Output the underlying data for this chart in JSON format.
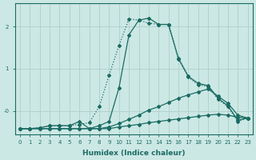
{
  "xlabel": "Humidex (Indice chaleur)",
  "bg_color": "#cce8e4",
  "grid_color": "#aecfcb",
  "line_color": "#1a6b63",
  "xlim": [
    -0.5,
    23.5
  ],
  "ylim": [
    -0.55,
    2.55
  ],
  "xticks": [
    0,
    1,
    2,
    3,
    4,
    5,
    6,
    7,
    8,
    9,
    10,
    11,
    12,
    13,
    14,
    15,
    16,
    17,
    18,
    19,
    20,
    21,
    22,
    23
  ],
  "yticks": [
    0.0,
    1.0,
    2.0
  ],
  "ytick_labels": [
    "-0",
    "1",
    "2"
  ],
  "lines": [
    {
      "x": [
        0,
        1,
        2,
        3,
        4,
        5,
        6,
        7,
        8,
        9,
        10,
        11,
        12,
        13,
        14,
        15,
        16,
        17,
        18,
        19,
        20,
        21,
        22,
        23
      ],
      "y": [
        -0.42,
        -0.42,
        -0.42,
        -0.42,
        -0.42,
        -0.42,
        -0.42,
        -0.42,
        -0.42,
        -0.42,
        -0.38,
        -0.35,
        -0.32,
        -0.28,
        -0.25,
        -0.22,
        -0.19,
        -0.16,
        -0.13,
        -0.1,
        -0.08,
        -0.1,
        -0.15,
        -0.17
      ],
      "style": "-",
      "marker": "D",
      "markersize": 2.0,
      "lw": 0.9
    },
    {
      "x": [
        0,
        1,
        2,
        3,
        4,
        5,
        6,
        7,
        8,
        9,
        10,
        11,
        12,
        13,
        14,
        15,
        16,
        17,
        18,
        19,
        20,
        21,
        22,
        23
      ],
      "y": [
        -0.42,
        -0.42,
        -0.42,
        -0.42,
        -0.42,
        -0.42,
        -0.42,
        -0.42,
        -0.42,
        -0.38,
        -0.3,
        -0.2,
        -0.1,
        0.02,
        0.1,
        0.2,
        0.3,
        0.38,
        0.45,
        0.52,
        0.35,
        0.18,
        -0.1,
        -0.17
      ],
      "style": "-",
      "marker": "D",
      "markersize": 2.0,
      "lw": 0.9
    },
    {
      "x": [
        0,
        1,
        2,
        3,
        4,
        5,
        6,
        7,
        8,
        9,
        10,
        11,
        12,
        13,
        14,
        15,
        16,
        17,
        18,
        19,
        20,
        21,
        22,
        23
      ],
      "y": [
        -0.42,
        -0.42,
        -0.4,
        -0.35,
        -0.35,
        -0.35,
        -0.25,
        -0.42,
        -0.35,
        -0.25,
        0.55,
        1.8,
        2.15,
        2.2,
        2.05,
        2.05,
        1.25,
        0.82,
        0.65,
        0.6,
        0.3,
        0.12,
        -0.22,
        -0.17
      ],
      "style": "-",
      "marker": "D",
      "markersize": 2.0,
      "lw": 0.9
    },
    {
      "x": [
        0,
        1,
        2,
        3,
        4,
        5,
        6,
        7,
        8,
        9,
        10,
        11,
        12,
        13,
        14,
        15,
        16,
        17,
        18,
        19,
        20,
        21,
        22,
        23
      ],
      "y": [
        -0.42,
        -0.42,
        -0.4,
        -0.35,
        -0.34,
        -0.35,
        -0.32,
        -0.28,
        0.1,
        0.85,
        1.55,
        2.18,
        2.15,
        2.08,
        2.05,
        2.05,
        1.22,
        0.8,
        0.62,
        0.58,
        0.28,
        0.1,
        -0.25,
        -0.17
      ],
      "style": ":",
      "marker": "D",
      "markersize": 2.0,
      "lw": 0.9
    }
  ]
}
